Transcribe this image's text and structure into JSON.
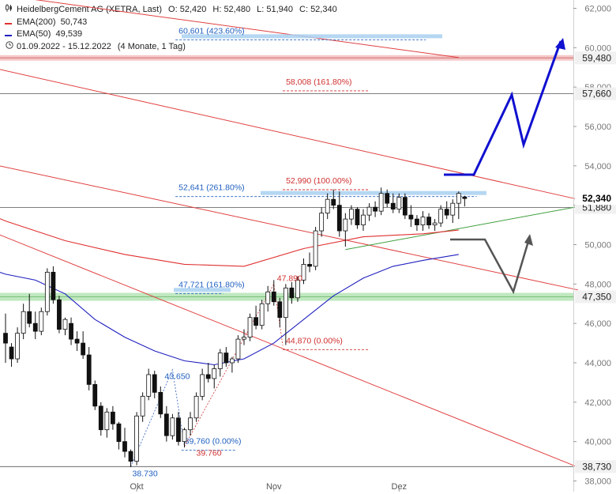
{
  "legend": {
    "title": "HeidelbergCement AG (XETRA, Last)",
    "open_label": "O:",
    "open": "52,420",
    "high_label": "H:",
    "high": "52,480",
    "low_label": "L:",
    "low": "51,940",
    "close_label": "C:",
    "close": "52,340",
    "ema200_label": "EMA(200)",
    "ema200_value": "50,743",
    "ema200_color": "#e03030",
    "ema50_label": "EMA(50)",
    "ema50_value": "49,539",
    "ema50_color": "#2020c0",
    "range": "01.09.2022 - 15.12.2022",
    "period": "(4 Monate, 1 Tag)",
    "bars_icon": "candlestick-icon",
    "clock_icon": "clock-icon"
  },
  "chart_data": {
    "type": "candlestick",
    "ylim": [
      38,
      62.4
    ],
    "y_ticks": [
      38,
      40,
      42,
      44,
      46,
      48,
      50,
      52,
      54,
      56,
      58,
      60,
      62
    ],
    "y_tick_labels": [
      "38,000",
      "40,000",
      "42,000",
      "44,000",
      "46,000",
      "48,000",
      "50,000",
      "52,000",
      "54,000",
      "56,000",
      "58,000",
      "60,000",
      "62,000"
    ],
    "x_ticks": [
      {
        "label": "Okt",
        "x": 22
      },
      {
        "label": "Nov",
        "x": 45
      },
      {
        "label": "Dez",
        "x": 66
      }
    ],
    "grid": false,
    "candles": [
      [
        0,
        45.5,
        46.5,
        44.0,
        45.0
      ],
      [
        1,
        44.8,
        45.0,
        43.8,
        44.2
      ],
      [
        2,
        44.2,
        45.8,
        44.0,
        45.5
      ],
      [
        3,
        45.5,
        47.0,
        45.2,
        46.6
      ],
      [
        4,
        46.6,
        47.5,
        45.8,
        46.0
      ],
      [
        5,
        46.0,
        46.6,
        45.2,
        45.6
      ],
      [
        6,
        45.6,
        46.8,
        45.4,
        46.6
      ],
      [
        7,
        46.6,
        48.8,
        46.4,
        48.6
      ],
      [
        8,
        48.6,
        48.9,
        47.0,
        47.2
      ],
      [
        9,
        47.2,
        47.4,
        45.5,
        45.7
      ],
      [
        10,
        45.7,
        46.3,
        45.4,
        46.2
      ],
      [
        11,
        46.0,
        46.3,
        44.9,
        45.2
      ],
      [
        12,
        45.2,
        45.6,
        44.6,
        45.0
      ],
      [
        13,
        45.0,
        45.6,
        44.2,
        44.4
      ],
      [
        14,
        44.4,
        44.8,
        42.6,
        42.9
      ],
      [
        15,
        42.9,
        43.1,
        41.6,
        41.8
      ],
      [
        16,
        41.8,
        42.0,
        40.3,
        40.6
      ],
      [
        17,
        40.6,
        41.7,
        40.2,
        41.5
      ],
      [
        18,
        41.5,
        41.8,
        40.6,
        40.9
      ],
      [
        19,
        40.9,
        41.0,
        39.6,
        40.0
      ],
      [
        20,
        40.0,
        40.7,
        39.2,
        39.5
      ],
      [
        21,
        39.5,
        39.6,
        38.7,
        39.0
      ],
      [
        22,
        39.0,
        41.5,
        38.8,
        41.3
      ],
      [
        23,
        41.3,
        42.5,
        41.0,
        42.3
      ],
      [
        24,
        42.3,
        43.7,
        42.1,
        43.4
      ],
      [
        25,
        43.4,
        43.6,
        42.2,
        42.5
      ],
      [
        26,
        42.5,
        42.8,
        41.2,
        41.4
      ],
      [
        27,
        41.4,
        41.8,
        40.0,
        40.3
      ],
      [
        28,
        40.3,
        41.4,
        40.1,
        41.2
      ],
      [
        29,
        41.2,
        41.5,
        39.8,
        40.0
      ],
      [
        30,
        40.0,
        40.7,
        39.7,
        40.6
      ],
      [
        31,
        40.6,
        41.5,
        40.3,
        41.2
      ],
      [
        32,
        41.2,
        42.5,
        41.0,
        42.3
      ],
      [
        33,
        42.3,
        43.7,
        42.1,
        43.4
      ],
      [
        34,
        43.4,
        44.0,
        43.0,
        43.2
      ],
      [
        35,
        43.2,
        43.9,
        42.7,
        43.7
      ],
      [
        36,
        43.7,
        44.7,
        43.3,
        44.5
      ],
      [
        37,
        44.5,
        44.8,
        43.8,
        44.0
      ],
      [
        38,
        44.0,
        44.3,
        43.5,
        44.2
      ],
      [
        39,
        44.2,
        45.4,
        44.0,
        45.2
      ],
      [
        40,
        45.2,
        45.7,
        44.9,
        45.3
      ],
      [
        41,
        45.3,
        46.5,
        45.1,
        46.3
      ],
      [
        42,
        46.3,
        46.9,
        45.7,
        45.9
      ],
      [
        43,
        45.9,
        47.2,
        45.7,
        47.0
      ],
      [
        44,
        47.0,
        47.9,
        46.6,
        47.6
      ],
      [
        45,
        47.6,
        48.2,
        46.9,
        47.1
      ],
      [
        46,
        47.1,
        47.3,
        45.8,
        46.3
      ],
      [
        47,
        46.3,
        48.0,
        44.9,
        47.8
      ],
      [
        48,
        47.8,
        48.1,
        47.0,
        47.3
      ],
      [
        49,
        47.3,
        48.4,
        47.1,
        48.2
      ],
      [
        50,
        48.2,
        49.3,
        48.0,
        49.0
      ],
      [
        51,
        49.0,
        49.6,
        48.6,
        48.9
      ],
      [
        52,
        48.9,
        50.9,
        48.7,
        50.7
      ],
      [
        53,
        50.7,
        51.9,
        50.4,
        51.6
      ],
      [
        54,
        51.6,
        52.6,
        51.3,
        52.3
      ],
      [
        55,
        52.3,
        52.8,
        51.8,
        52.0
      ],
      [
        56,
        52.0,
        52.7,
        50.4,
        50.7
      ],
      [
        57,
        50.7,
        51.6,
        49.9,
        51.3
      ],
      [
        58,
        51.3,
        52.0,
        51.0,
        51.8
      ],
      [
        59,
        51.8,
        51.9,
        50.8,
        51.0
      ],
      [
        60,
        51.0,
        51.8,
        50.7,
        51.5
      ],
      [
        61,
        51.5,
        52.1,
        51.2,
        51.9
      ],
      [
        62,
        51.9,
        52.2,
        51.4,
        51.7
      ],
      [
        63,
        51.7,
        52.9,
        51.5,
        52.6
      ],
      [
        64,
        52.6,
        52.8,
        51.9,
        52.1
      ],
      [
        65,
        52.1,
        52.6,
        51.6,
        51.8
      ],
      [
        66,
        51.8,
        52.6,
        51.6,
        52.4
      ],
      [
        67,
        52.4,
        52.6,
        51.3,
        51.5
      ],
      [
        68,
        51.5,
        52.0,
        50.9,
        51.3
      ],
      [
        69,
        51.3,
        51.5,
        50.7,
        51.0
      ],
      [
        70,
        51.0,
        51.7,
        50.7,
        51.4
      ],
      [
        71,
        51.4,
        51.6,
        50.8,
        51.0
      ],
      [
        72,
        51.0,
        51.3,
        50.7,
        51.1
      ],
      [
        73,
        51.1,
        52.0,
        50.9,
        51.8
      ],
      [
        74,
        51.8,
        52.2,
        51.3,
        51.5
      ],
      [
        75,
        51.5,
        52.3,
        51.1,
        52.1
      ],
      [
        76,
        52.1,
        52.7,
        51.3,
        52.6
      ],
      [
        77,
        52.42,
        52.48,
        51.94,
        52.34
      ]
    ],
    "ema200": [
      [
        -8,
        52.2
      ],
      [
        0,
        51.2
      ],
      [
        10,
        50.2
      ],
      [
        20,
        49.5
      ],
      [
        30,
        49.0
      ],
      [
        40,
        48.9
      ],
      [
        50,
        49.8
      ],
      [
        60,
        50.4
      ],
      [
        70,
        50.55
      ],
      [
        76,
        50.74
      ]
    ],
    "ema50": [
      [
        -8,
        49.3
      ],
      [
        0,
        48.5
      ],
      [
        5,
        48.2
      ],
      [
        10,
        47.5
      ],
      [
        15,
        46.2
      ],
      [
        20,
        45.3
      ],
      [
        25,
        44.6
      ],
      [
        30,
        44.1
      ],
      [
        35,
        43.9
      ],
      [
        40,
        44.2
      ],
      [
        45,
        45.0
      ],
      [
        50,
        46.2
      ],
      [
        55,
        47.4
      ],
      [
        60,
        48.3
      ],
      [
        65,
        48.9
      ],
      [
        70,
        49.2
      ],
      [
        76,
        49.5
      ]
    ],
    "horizontal_lines": [
      {
        "label": "59,480",
        "y": 59.48,
        "style": "red-band"
      },
      {
        "label": "57,660",
        "y": 57.66,
        "style": "line"
      },
      {
        "label": "51,880",
        "y": 51.88,
        "style": "line"
      },
      {
        "label": "47,350",
        "y": 47.35,
        "style": "green-band"
      },
      {
        "label": "38,730",
        "y": 38.73,
        "style": "line"
      }
    ],
    "current_price_label": "52,340",
    "current_price": 52.34,
    "fib_levels": [
      {
        "label": "60,601 (423.60%)",
        "y": 60.601,
        "x0": 28.5,
        "x1": 70.5,
        "color": "blue"
      },
      {
        "label": "58,008 (161.80%)",
        "y": 58.008,
        "x0": 46.5,
        "x1": 61,
        "color": "red"
      },
      {
        "label": "52,990 (100.00%)",
        "y": 52.99,
        "x0": 46.5,
        "x1": 61,
        "color": "red"
      },
      {
        "label": "52,641 (261.80%)",
        "y": 52.641,
        "x0": 28.5,
        "x1": 79,
        "color": "blue"
      },
      {
        "label": "47,721 (161.80%)",
        "y": 47.721,
        "x0": 28.5,
        "x1": 36.5,
        "color": "blue"
      },
      {
        "label": "44,870 (0.00%)",
        "y": 44.87,
        "x0": 46.5,
        "x1": 61,
        "color": "red"
      },
      {
        "label": "39,760 (0.00%)",
        "y": 39.76,
        "x0": 29.5,
        "x1": 38.5,
        "color": "blue"
      }
    ],
    "point_labels": [
      {
        "label": "43.650",
        "x": 28,
        "y": 43.65,
        "color": "blue"
      },
      {
        "label": "38.730",
        "x": 21,
        "y": 38.73,
        "color": "blue"
      },
      {
        "label": "47.890",
        "x": 45,
        "y": 48.0,
        "color": "red"
      },
      {
        "label": "39.760",
        "x": 30,
        "y": 39.76,
        "color": "red"
      }
    ]
  }
}
